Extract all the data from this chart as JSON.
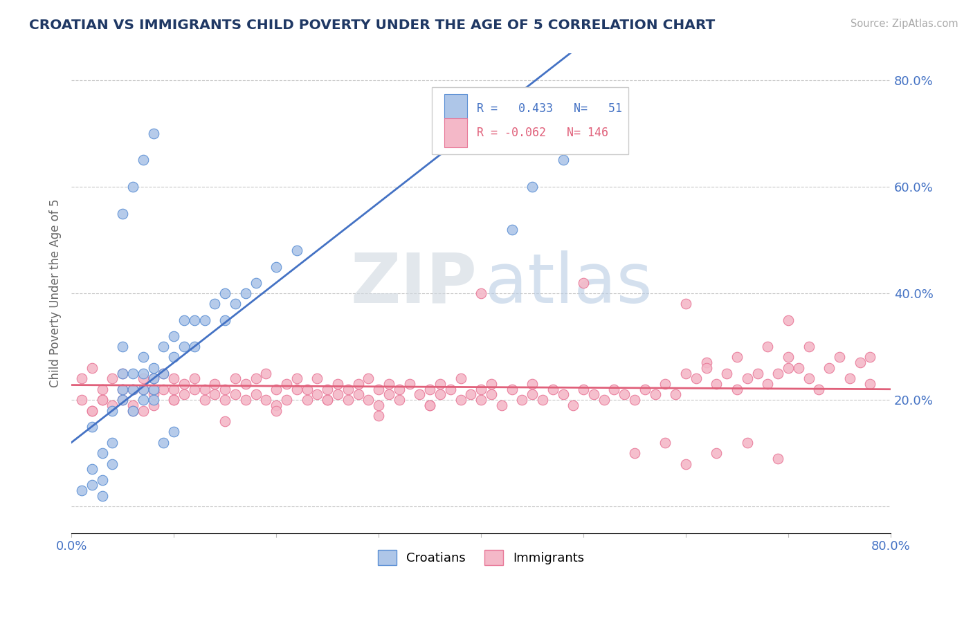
{
  "title": "CROATIAN VS IMMIGRANTS CHILD POVERTY UNDER THE AGE OF 5 CORRELATION CHART",
  "source": "Source: ZipAtlas.com",
  "ylabel": "Child Poverty Under the Age of 5",
  "xlim": [
    0.0,
    0.8
  ],
  "ylim": [
    -0.05,
    0.85
  ],
  "xticks": [
    0.0,
    0.1,
    0.2,
    0.3,
    0.4,
    0.5,
    0.6,
    0.7,
    0.8
  ],
  "yticks": [
    0.0,
    0.2,
    0.4,
    0.6,
    0.8
  ],
  "croatian_color": "#aec6e8",
  "immigrant_color": "#f4b8c8",
  "croatian_edge_color": "#5b8fd4",
  "immigrant_edge_color": "#e87898",
  "croatian_line_color": "#4472c4",
  "immigrant_line_color": "#e0607a",
  "R_croatian": 0.433,
  "N_croatian": 51,
  "R_immigrant": -0.062,
  "N_immigrant": 146,
  "grid_color": "#c8c8c8",
  "background_color": "#ffffff",
  "title_color": "#1f3864",
  "tick_color": "#4472c4",
  "watermark_zip": "ZIP",
  "watermark_atlas": "atlas",
  "legend_croatian": "Croatians",
  "legend_immigrant": "Immigrants",
  "croatian_x": [
    0.01,
    0.02,
    0.02,
    0.02,
    0.03,
    0.03,
    0.03,
    0.04,
    0.04,
    0.04,
    0.05,
    0.05,
    0.05,
    0.05,
    0.06,
    0.06,
    0.06,
    0.07,
    0.07,
    0.07,
    0.07,
    0.08,
    0.08,
    0.08,
    0.08,
    0.09,
    0.09,
    0.1,
    0.1,
    0.11,
    0.11,
    0.12,
    0.12,
    0.13,
    0.14,
    0.15,
    0.15,
    0.16,
    0.17,
    0.18,
    0.2,
    0.22,
    0.05,
    0.06,
    0.07,
    0.08,
    0.09,
    0.1,
    0.43,
    0.45,
    0.48
  ],
  "croatian_y": [
    0.03,
    0.04,
    0.07,
    0.15,
    0.02,
    0.05,
    0.1,
    0.08,
    0.12,
    0.18,
    0.2,
    0.22,
    0.25,
    0.3,
    0.18,
    0.22,
    0.25,
    0.2,
    0.22,
    0.25,
    0.28,
    0.2,
    0.22,
    0.24,
    0.26,
    0.25,
    0.3,
    0.28,
    0.32,
    0.3,
    0.35,
    0.3,
    0.35,
    0.35,
    0.38,
    0.35,
    0.4,
    0.38,
    0.4,
    0.42,
    0.45,
    0.48,
    0.55,
    0.6,
    0.65,
    0.7,
    0.12,
    0.14,
    0.52,
    0.6,
    0.65
  ],
  "immigrant_x": [
    0.01,
    0.01,
    0.02,
    0.02,
    0.03,
    0.03,
    0.04,
    0.04,
    0.05,
    0.05,
    0.05,
    0.06,
    0.06,
    0.07,
    0.07,
    0.07,
    0.08,
    0.08,
    0.08,
    0.09,
    0.09,
    0.1,
    0.1,
    0.1,
    0.11,
    0.11,
    0.12,
    0.12,
    0.13,
    0.13,
    0.14,
    0.14,
    0.15,
    0.15,
    0.16,
    0.16,
    0.17,
    0.17,
    0.18,
    0.18,
    0.19,
    0.19,
    0.2,
    0.2,
    0.21,
    0.21,
    0.22,
    0.22,
    0.23,
    0.23,
    0.24,
    0.24,
    0.25,
    0.25,
    0.26,
    0.26,
    0.27,
    0.27,
    0.28,
    0.28,
    0.29,
    0.29,
    0.3,
    0.3,
    0.31,
    0.31,
    0.32,
    0.32,
    0.33,
    0.34,
    0.35,
    0.35,
    0.36,
    0.36,
    0.37,
    0.38,
    0.38,
    0.39,
    0.4,
    0.4,
    0.41,
    0.41,
    0.42,
    0.43,
    0.44,
    0.45,
    0.45,
    0.46,
    0.47,
    0.48,
    0.49,
    0.5,
    0.51,
    0.52,
    0.53,
    0.54,
    0.55,
    0.56,
    0.57,
    0.58,
    0.59,
    0.6,
    0.61,
    0.62,
    0.63,
    0.64,
    0.65,
    0.66,
    0.67,
    0.68,
    0.69,
    0.7,
    0.71,
    0.72,
    0.73,
    0.74,
    0.75,
    0.76,
    0.77,
    0.78,
    0.02,
    0.03,
    0.06,
    0.08,
    0.1,
    0.15,
    0.2,
    0.25,
    0.3,
    0.35,
    0.4,
    0.5,
    0.6,
    0.7,
    0.78,
    0.62,
    0.65,
    0.68,
    0.7,
    0.72,
    0.55,
    0.58,
    0.6,
    0.63,
    0.66,
    0.69
  ],
  "immigrant_y": [
    0.24,
    0.2,
    0.26,
    0.18,
    0.22,
    0.2,
    0.24,
    0.19,
    0.22,
    0.2,
    0.25,
    0.22,
    0.19,
    0.24,
    0.22,
    0.18,
    0.24,
    0.21,
    0.19,
    0.22,
    0.25,
    0.22,
    0.2,
    0.24,
    0.21,
    0.23,
    0.22,
    0.24,
    0.2,
    0.22,
    0.23,
    0.21,
    0.22,
    0.2,
    0.24,
    0.21,
    0.23,
    0.2,
    0.24,
    0.21,
    0.25,
    0.2,
    0.22,
    0.19,
    0.23,
    0.2,
    0.22,
    0.24,
    0.2,
    0.22,
    0.24,
    0.21,
    0.22,
    0.2,
    0.23,
    0.21,
    0.22,
    0.2,
    0.23,
    0.21,
    0.24,
    0.2,
    0.22,
    0.19,
    0.23,
    0.21,
    0.22,
    0.2,
    0.23,
    0.21,
    0.22,
    0.19,
    0.23,
    0.21,
    0.22,
    0.2,
    0.24,
    0.21,
    0.22,
    0.2,
    0.23,
    0.21,
    0.19,
    0.22,
    0.2,
    0.23,
    0.21,
    0.2,
    0.22,
    0.21,
    0.19,
    0.22,
    0.21,
    0.2,
    0.22,
    0.21,
    0.2,
    0.22,
    0.21,
    0.23,
    0.21,
    0.25,
    0.24,
    0.27,
    0.23,
    0.25,
    0.22,
    0.24,
    0.25,
    0.23,
    0.25,
    0.28,
    0.26,
    0.3,
    0.22,
    0.26,
    0.28,
    0.24,
    0.27,
    0.23,
    0.18,
    0.2,
    0.18,
    0.22,
    0.2,
    0.16,
    0.18,
    0.2,
    0.17,
    0.19,
    0.4,
    0.42,
    0.38,
    0.35,
    0.28,
    0.26,
    0.28,
    0.3,
    0.26,
    0.24,
    0.1,
    0.12,
    0.08,
    0.1,
    0.12,
    0.09
  ]
}
